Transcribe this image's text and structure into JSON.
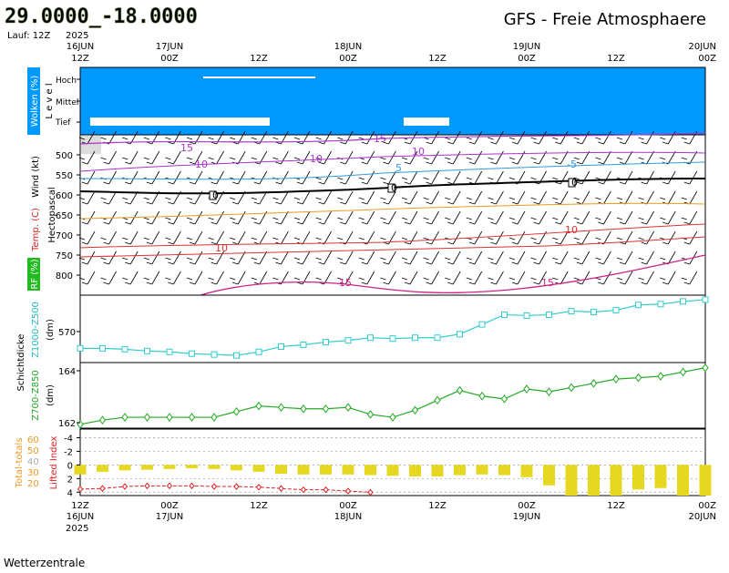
{
  "header": {
    "coords": "29.0000_-18.0000",
    "model_title": "GFS - Freie Atmosphaere",
    "run_label": "Lauf: 12Z",
    "year": "2025"
  },
  "footer": {
    "credit": "Wetterzentrale"
  },
  "time_axis": {
    "ticks": [
      {
        "hour": "12Z",
        "day": "16JUN"
      },
      {
        "hour": "00Z",
        "day": "17JUN"
      },
      {
        "hour": "12Z",
        "day": ""
      },
      {
        "hour": "00Z",
        "day": "18JUN"
      },
      {
        "hour": "12Z",
        "day": ""
      },
      {
        "hour": "00Z",
        "day": "19JUN"
      },
      {
        "hour": "12Z",
        "day": ""
      },
      {
        "hour": "00Z",
        "day": "20JUN"
      }
    ],
    "bottom_year": "2025"
  },
  "panels": {
    "clouds": {
      "axis_label": "Wolken (%)",
      "level_word": "L e v e l",
      "levels": [
        "Hoch",
        "Mittel",
        "Tief"
      ],
      "background": "#0099ff"
    },
    "atmosphere": {
      "axis_label": "Hectopascal",
      "wind_label": "Wind (kt)",
      "temp_label": "Temp. (C)",
      "rh_label": "RF (%)",
      "pressure_ticks": [
        "500",
        "550",
        "600",
        "650",
        "700",
        "750",
        "800"
      ],
      "contour_labels": [
        "15",
        "10",
        "10",
        "5",
        "15",
        "10",
        "-5",
        "10",
        "10",
        "15",
        "15",
        "0",
        "0",
        "0"
      ]
    },
    "thickness_500": {
      "label1": "Schichtdicke",
      "label2": "Z1000-Z500",
      "unit": "(dm)",
      "ticks": [
        "570"
      ]
    },
    "thickness_850": {
      "label": "Z700-Z850",
      "unit": "(dm)",
      "ticks": [
        "164",
        "162"
      ]
    },
    "indices": {
      "total_totals_label": "Total-totals",
      "lifted_label": "Lifted Index",
      "tt_ticks": [
        "60",
        "50",
        "40",
        "30",
        "20"
      ],
      "li_ticks": [
        "-4",
        "-2",
        "0",
        "2",
        "4"
      ]
    }
  },
  "chart_data": [
    {
      "type": "line",
      "title": "Z1000-Z500",
      "ylabel": "(dm)",
      "x": [
        "16JUN 12Z",
        "16JUN 15Z",
        "16JUN 18Z",
        "16JUN 21Z",
        "17JUN 00Z",
        "17JUN 03Z",
        "17JUN 06Z",
        "17JUN 09Z",
        "17JUN 12Z",
        "17JUN 15Z",
        "17JUN 18Z",
        "17JUN 21Z",
        "18JUN 00Z",
        "18JUN 03Z",
        "18JUN 06Z",
        "18JUN 09Z",
        "18JUN 12Z",
        "18JUN 15Z",
        "18JUN 18Z",
        "18JUN 21Z",
        "19JUN 00Z",
        "19JUN 03Z",
        "19JUN 06Z",
        "19JUN 09Z",
        "19JUN 12Z",
        "19JUN 15Z",
        "19JUN 18Z",
        "19JUN 21Z",
        "20JUN 00Z"
      ],
      "values": [
        566.6,
        566.6,
        566.5,
        566.3,
        566.2,
        566.0,
        565.9,
        565.8,
        566.2,
        566.8,
        567.0,
        567.3,
        567.5,
        567.8,
        567.7,
        567.8,
        567.8,
        568.2,
        569.3,
        570.4,
        570.3,
        570.4,
        570.8,
        570.7,
        570.9,
        571.5,
        571.6,
        571.9,
        572.1
      ],
      "color": "#33cccc"
    },
    {
      "type": "line",
      "title": "Z700-Z850",
      "ylabel": "(dm)",
      "x": [
        "16JUN 12Z",
        "16JUN 15Z",
        "16JUN 18Z",
        "16JUN 21Z",
        "17JUN 00Z",
        "17JUN 03Z",
        "17JUN 06Z",
        "17JUN 09Z",
        "17JUN 12Z",
        "17JUN 15Z",
        "17JUN 18Z",
        "17JUN 21Z",
        "18JUN 00Z",
        "18JUN 03Z",
        "18JUN 06Z",
        "18JUN 09Z",
        "18JUN 12Z",
        "18JUN 15Z",
        "18JUN 18Z",
        "18JUN 21Z",
        "19JUN 00Z",
        "19JUN 03Z",
        "19JUN 06Z",
        "19JUN 09Z",
        "19JUN 12Z",
        "19JUN 15Z",
        "19JUN 18Z",
        "19JUN 21Z",
        "20JUN 00Z"
      ],
      "values": [
        161.95,
        162.1,
        162.2,
        162.2,
        162.2,
        162.2,
        162.2,
        162.4,
        162.6,
        162.55,
        162.5,
        162.5,
        162.55,
        162.3,
        162.2,
        162.45,
        162.8,
        163.15,
        162.95,
        162.85,
        163.2,
        163.1,
        163.25,
        163.4,
        163.55,
        163.6,
        163.65,
        163.8,
        163.95
      ],
      "color": "#22aa22"
    },
    {
      "type": "bar",
      "title": "Lifted Index",
      "x": [
        "16JUN 12Z",
        "16JUN 15Z",
        "16JUN 18Z",
        "16JUN 21Z",
        "17JUN 00Z",
        "17JUN 03Z",
        "17JUN 06Z",
        "17JUN 09Z",
        "17JUN 12Z",
        "17JUN 15Z",
        "17JUN 18Z",
        "17JUN 21Z",
        "18JUN 00Z",
        "18JUN 03Z",
        "18JUN 06Z",
        "18JUN 09Z",
        "18JUN 12Z",
        "18JUN 15Z",
        "18JUN 18Z",
        "18JUN 21Z",
        "19JUN 00Z",
        "19JUN 03Z",
        "19JUN 06Z",
        "19JUN 09Z",
        "19JUN 12Z",
        "19JUN 15Z",
        "19JUN 18Z",
        "19JUN 21Z",
        "20JUN 00Z"
      ],
      "values": [
        1.4,
        1.0,
        0.8,
        0.7,
        0.6,
        0.5,
        0.6,
        0.8,
        1.0,
        1.3,
        1.4,
        1.4,
        1.4,
        1.5,
        1.6,
        1.7,
        1.7,
        1.5,
        1.4,
        1.5,
        1.8,
        3.0,
        4.5,
        4.5,
        4.5,
        3.6,
        3.4,
        4.5,
        4.5
      ],
      "ylim": [
        -5,
        4.5
      ],
      "color": "#e6d820"
    },
    {
      "type": "line",
      "title": "Total-totals",
      "x": [
        "16JUN 12Z",
        "16JUN 15Z",
        "16JUN 18Z",
        "16JUN 21Z",
        "17JUN 00Z",
        "17JUN 03Z",
        "17JUN 06Z",
        "17JUN 09Z",
        "17JUN 12Z",
        "17JUN 15Z",
        "17JUN 18Z",
        "17JUN 21Z",
        "18JUN 00Z",
        "18JUN 03Z"
      ],
      "values": [
        20,
        20.5,
        22,
        22.5,
        22.5,
        22.5,
        22,
        22,
        21.5,
        20.5,
        19.5,
        19.5,
        18.5,
        17.5
      ],
      "ylim": [
        15,
        65
      ],
      "color": "#dd2222"
    }
  ]
}
